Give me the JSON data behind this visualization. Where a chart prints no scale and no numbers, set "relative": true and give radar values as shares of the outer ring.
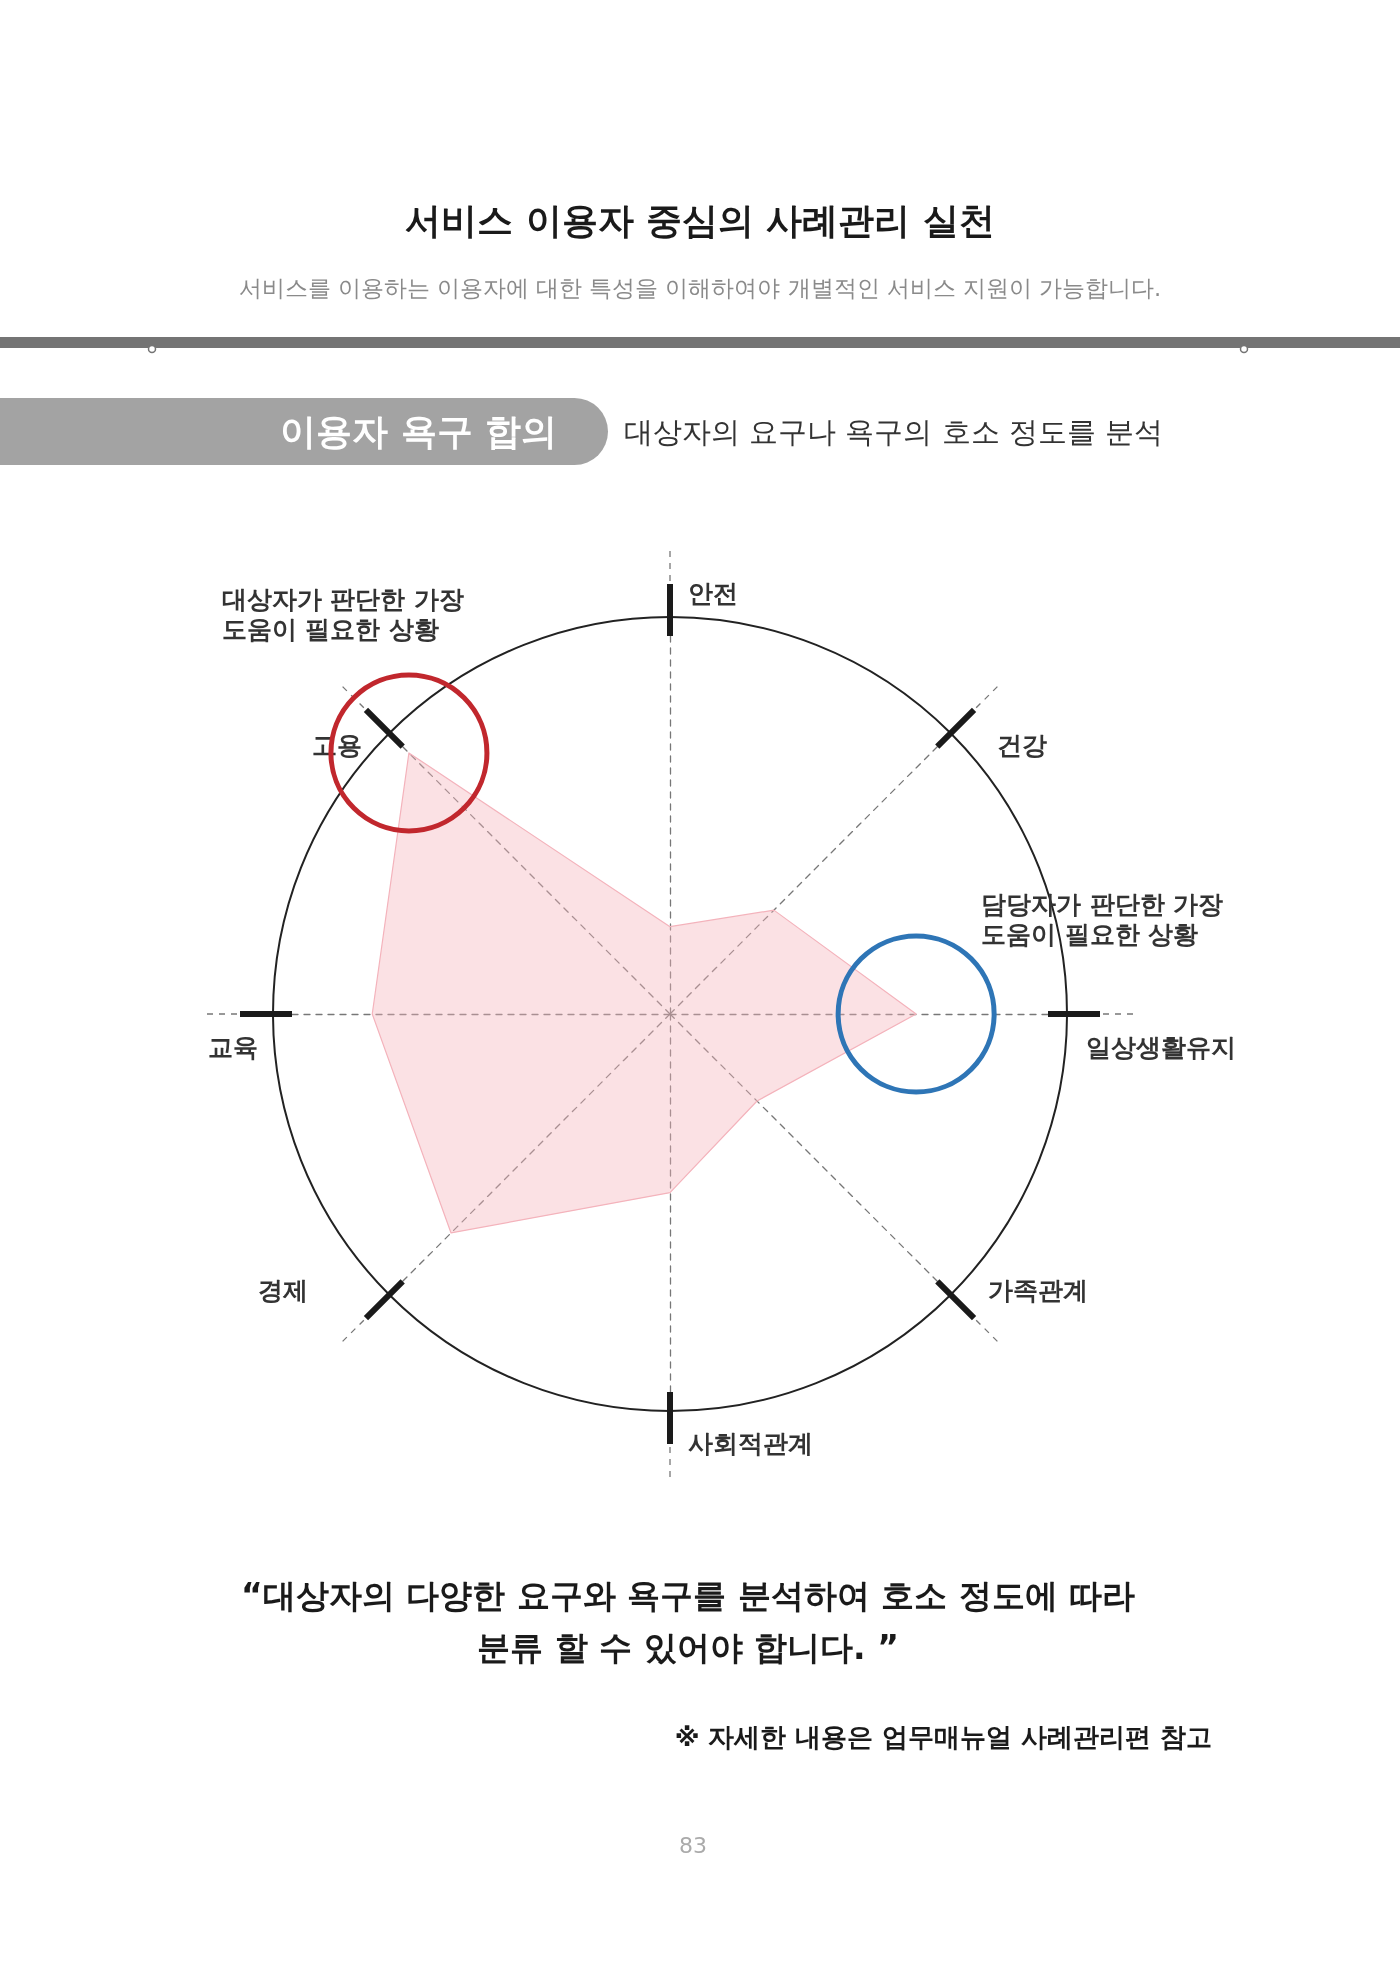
{
  "chart_data": {
    "type": "radar",
    "title": "서비스 이용자 중심의 사례관리 실천",
    "subtitle": "서비스를 이용하는 이용자에 대한 특성을 이해하여야 개별적인 서비스 지원이 가능합니다.",
    "categories": [
      "안전",
      "건강",
      "일상생활유지",
      "가족관계",
      "사회적관계",
      "경제",
      "교육",
      "고용"
    ],
    "values": [
      0.22,
      0.37,
      0.62,
      0.31,
      0.45,
      0.78,
      0.75,
      0.93
    ],
    "color": "#f4b3bc",
    "relative": true,
    "annotations": [
      "이용자 욕구 합의",
      "대상자의 요구나 욕구의 호소 정도를 분석",
      {
        "text": "대상자가 판단한 가장 도움이 필요한 상황",
        "x": "고용"
      },
      {
        "text": "담당자가 판단한 가장 도움이 필요한 상황",
        "x": "일상생활유지"
      },
      "“대상자의 다양한 요구와 욕구를 분석하여 호소 정도에 따라 분류 할 수 있어야 합니다. ”",
      "※ 자세한 내용은 업무매뉴얼 사례관리편 참고",
      "83"
    ]
  }
}
